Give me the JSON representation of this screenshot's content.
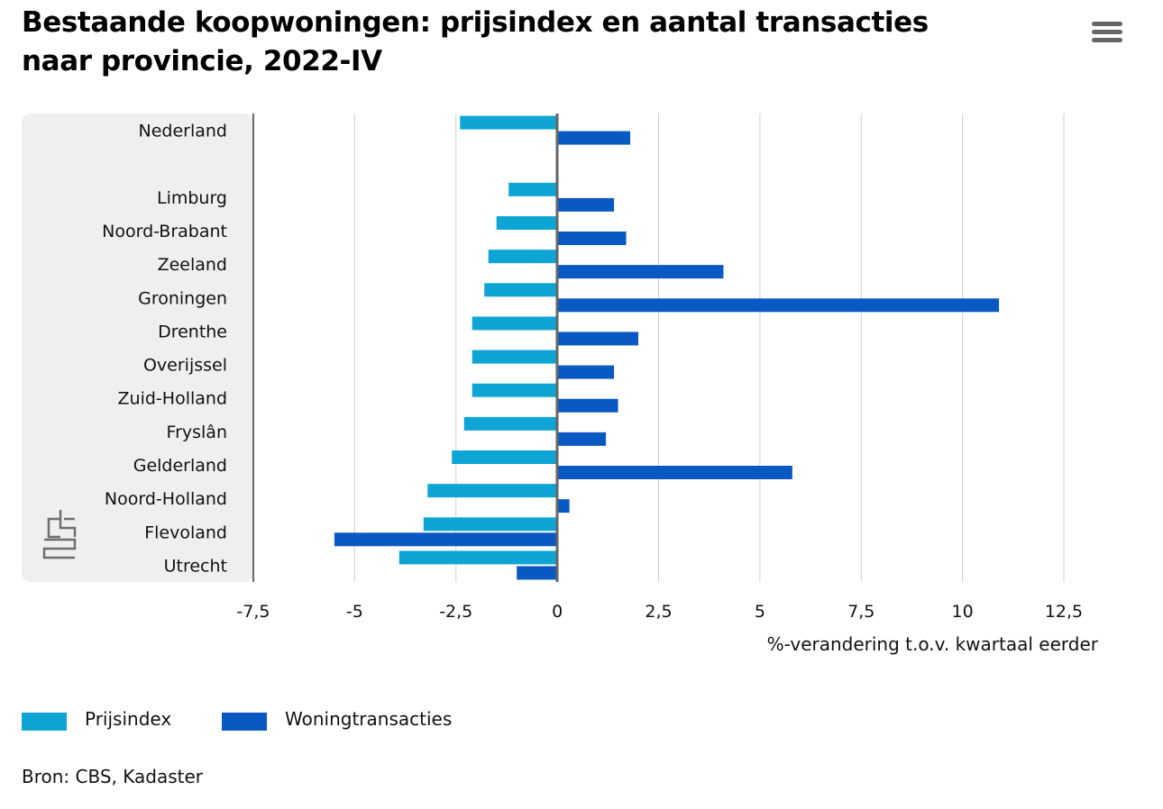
{
  "title": "Bestaande koopwoningen: prijsindex en aantal transacties naar provincie, 2022-IV",
  "menu": {
    "icon": "hamburger-menu-icon"
  },
  "logo": {
    "icon": "cbs-logo-icon"
  },
  "colors": {
    "prijsindex": "#0ea5d5",
    "woningtransacties": "#0a58c2",
    "category_panel": "#efefef",
    "gridline": "#cfcfcf",
    "zero_line": "#666666"
  },
  "chart_data": {
    "type": "bar",
    "orientation": "horizontal",
    "categories": [
      "Nederland",
      "",
      "Limburg",
      "Noord-Brabant",
      "Zeeland",
      "Groningen",
      "Drenthe",
      "Overijssel",
      "Zuid-Holland",
      "Fryslân",
      "Gelderland",
      "Noord-Holland",
      "Flevoland",
      "Utrecht"
    ],
    "series": [
      {
        "name": "Prijsindex",
        "color": "#0ea5d5",
        "values": [
          -2.4,
          null,
          -1.2,
          -1.5,
          -1.7,
          -1.8,
          -2.1,
          -2.1,
          -2.1,
          -2.3,
          -2.6,
          -3.2,
          -3.3,
          -3.9
        ]
      },
      {
        "name": "Woningtransacties",
        "color": "#0a58c2",
        "values": [
          1.8,
          null,
          1.4,
          1.7,
          4.1,
          10.9,
          2.0,
          1.4,
          1.5,
          1.2,
          5.8,
          0.3,
          -5.5,
          -1.0
        ]
      }
    ],
    "xlabel": "%-verandering t.o.v. kwartaal eerder",
    "xlim": [
      -7.5,
      12.5
    ],
    "xticks": [
      -7.5,
      -5,
      -2.5,
      0,
      2.5,
      5,
      7.5,
      10,
      12.5
    ],
    "xtick_labels": [
      "-7,5",
      "-5",
      "-2,5",
      "0",
      "2,5",
      "5",
      "7,5",
      "10",
      "12,5"
    ],
    "grid": true,
    "legend_position": "bottom-left"
  },
  "source": "Bron: CBS, Kadaster"
}
